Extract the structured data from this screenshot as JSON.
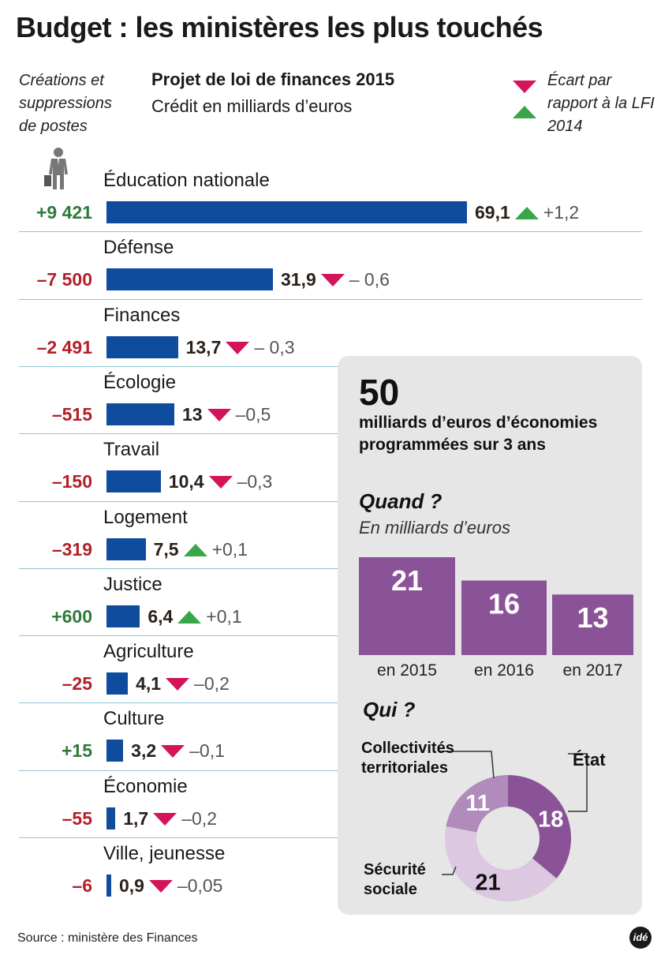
{
  "title": "Budget : les ministères les plus touchés",
  "postes_note": "Créations et suppressions de postes",
  "subtitle": "Projet de loi de finances 2015",
  "subtitle_unit": "Crédit en milliards d’euros",
  "legend_text": "Écart par rapport à la LFI 2014",
  "colors": {
    "bar": "#0f4c9e",
    "positive": "#2f7a3a",
    "negative": "#b3202a",
    "arrow_up": "#3aa64a",
    "arrow_down": "#d4145a",
    "purple": "#8a5397",
    "separator": "#8fc6cf"
  },
  "icons": {
    "person": "businessman-icon",
    "legend_down": "triangle-down-icon",
    "legend_up": "triangle-up-icon"
  },
  "chart_data": [
    {
      "type": "bar",
      "orientation": "horizontal",
      "title": "Projet de loi de finances 2015",
      "subtitle": "Crédit en milliards d’euros",
      "categories": [
        "Éducation nationale",
        "Défense",
        "Finances",
        "Écologie",
        "Travail",
        "Logement",
        "Justice",
        "Agriculture",
        "Culture",
        "Économie",
        "Ville, jeunesse"
      ],
      "values": [
        69.1,
        31.9,
        13.7,
        13,
        10.4,
        7.5,
        6.4,
        4.1,
        3.2,
        1.7,
        0.9
      ],
      "value_labels": [
        "69,1",
        "31,9",
        "13,7",
        "13",
        "10,4",
        "7,5",
        "6,4",
        "4,1",
        "3,2",
        "1,7",
        "0,9"
      ],
      "delta_labels": [
        "+1,2",
        "– 0,6",
        "– 0,3",
        "–0,5",
        "–0,3",
        "+0,1",
        "+0,1",
        "–0,2",
        "–0,1",
        "–0,2",
        "–0,05"
      ],
      "delta_direction": [
        "up",
        "down",
        "down",
        "down",
        "down",
        "up",
        "up",
        "down",
        "down",
        "down",
        "down"
      ],
      "postes_labels": [
        "+9 421",
        "–7 500",
        "–2 491",
        "–515",
        "–150",
        "–319",
        "+600",
        "–25",
        "+15",
        "–55",
        "–6"
      ],
      "postes_sign": [
        "pos",
        "neg",
        "neg",
        "neg",
        "neg",
        "neg",
        "pos",
        "neg",
        "pos",
        "neg",
        "neg"
      ]
    },
    {
      "type": "bar",
      "title": "Quand ?",
      "subtitle": "En milliards d’euros",
      "categories": [
        "en 2015",
        "en 2016",
        "en 2017"
      ],
      "values": [
        21,
        16,
        13
      ],
      "ylim": [
        0,
        21
      ]
    },
    {
      "type": "pie",
      "donut": true,
      "title": "Qui ?",
      "categories": [
        "État",
        "Sécurité sociale",
        "Collectivités territoriales"
      ],
      "values": [
        18,
        21,
        11
      ],
      "colors": [
        "#8a5397",
        "#dcc8e0",
        "#b08bbb"
      ]
    }
  ],
  "panel": {
    "big_number": "50",
    "description": "milliards d’euros d’économies programmées sur 3 ans"
  },
  "source": "Source : ministère des Finances",
  "logo": "idé"
}
